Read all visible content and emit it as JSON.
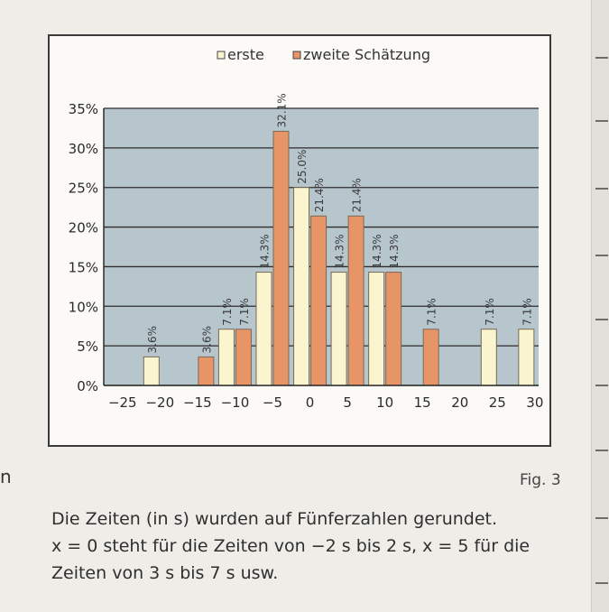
{
  "chart_data": {
    "type": "bar",
    "legend": [
      "erste",
      "zweite Schätzung"
    ],
    "x_ticks": [
      "−25",
      "−20",
      "−15",
      "−10",
      "−5",
      "0",
      "5",
      "10",
      "15",
      "20",
      "25",
      "30"
    ],
    "y_ticks": [
      "0%",
      "5%",
      "10%",
      "15%",
      "20%",
      "25%",
      "30%",
      "35%"
    ],
    "ylim": [
      0,
      35
    ],
    "grid": true,
    "legend_position": "top",
    "series": [
      {
        "name": "erste",
        "color": "#fbf5cf",
        "points": [
          {
            "x": -20,
            "value": 3.6,
            "label": ""
          },
          {
            "x": -10,
            "value": 7.1,
            "label": "7.1%"
          },
          {
            "x": -5,
            "value": 14.3,
            "label": "14.3%"
          },
          {
            "x": 0,
            "value": 25.0,
            "label": "25.0%"
          },
          {
            "x": 5,
            "value": 14.3,
            "label": "14.3%"
          },
          {
            "x": 10,
            "value": 14.3,
            "label": "14.3%"
          },
          {
            "x": 25,
            "value": 7.1,
            "label": "7.1%"
          },
          {
            "x": 30,
            "value": 7.1,
            "label": "7.1%"
          }
        ]
      },
      {
        "name": "zweite Schätzung",
        "color": "#e79467",
        "points": [
          {
            "x": -15,
            "value": 3.6,
            "label": "3.6%"
          },
          {
            "x": -10,
            "value": 7.1,
            "label": "7.1%"
          },
          {
            "x": -5,
            "value": 32.1,
            "label": "32.1%"
          },
          {
            "x": 0,
            "value": 21.4,
            "label": "21.4%"
          },
          {
            "x": 5,
            "value": 21.4,
            "label": "21.4%"
          },
          {
            "x": 10,
            "value": 14.3,
            "label": "14.3%"
          },
          {
            "x": 15,
            "value": 7.1,
            "label": "7.1%"
          }
        ]
      }
    ],
    "extra_labels": [
      {
        "x": -20,
        "text": "3.6%"
      }
    ],
    "plot_bg": "#b7c5cd"
  },
  "fig_label": "Fig. 3",
  "caption": [
    "Die Zeiten (in s) wurden auf Fünferzahlen gerundet.",
    "x = 0 steht für die Zeiten von −2 s bis 2 s, x = 5 für die",
    "Zeiten von 3 s bis 7 s usw."
  ],
  "margin_mark": "n"
}
